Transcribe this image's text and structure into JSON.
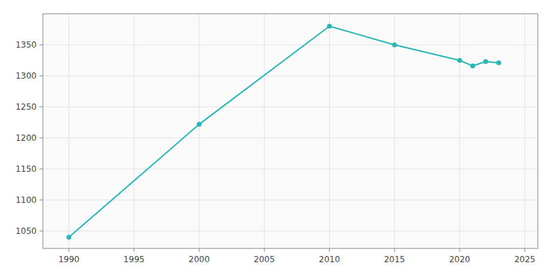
{
  "chart_data": {
    "type": "line",
    "x": [
      1990,
      2000,
      2010,
      2015,
      2020,
      2021,
      2022,
      2023
    ],
    "values": [
      1040,
      1222,
      1380,
      1350,
      1325,
      1316,
      1323,
      1321
    ],
    "color": "#2ab5b5",
    "marker": "circle",
    "line_style": "solid",
    "xlim": [
      1988,
      2026
    ],
    "ylim": [
      1022,
      1400
    ],
    "xticks": [
      1990,
      1995,
      2000,
      2005,
      2010,
      2015,
      2020,
      2025
    ],
    "yticks": [
      1050,
      1100,
      1150,
      1200,
      1250,
      1300,
      1350
    ],
    "grid": true
  }
}
